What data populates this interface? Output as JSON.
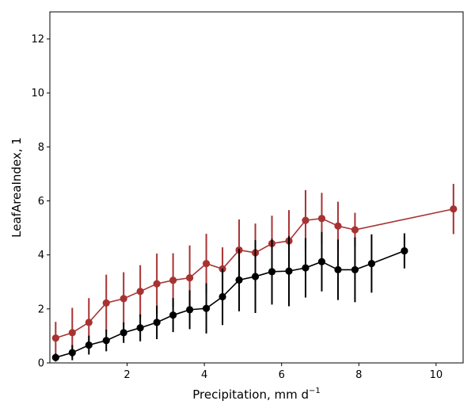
{
  "chart_data": {
    "type": "line",
    "title": "",
    "xlabel": "Precipitation,  mm d",
    "xlabel_sup": "−1",
    "ylabel": "LeafAreaIndex,  1",
    "xlim": [
      0.0,
      10.7
    ],
    "ylim": [
      0,
      13
    ],
    "xticks": [
      2,
      4,
      6,
      8,
      10
    ],
    "yticks": [
      0,
      2,
      4,
      6,
      8,
      10,
      12
    ],
    "grid": false,
    "legend": "none",
    "series": [
      {
        "color": "#a83232",
        "points": [
          {
            "x": 0.15,
            "y": 0.92,
            "err": 0.6
          },
          {
            "x": 0.58,
            "y": 1.12,
            "err": 0.92
          },
          {
            "x": 1.01,
            "y": 1.5,
            "err": 0.9
          },
          {
            "x": 1.46,
            "y": 2.22,
            "err": 1.05
          },
          {
            "x": 1.91,
            "y": 2.38,
            "err": 0.98
          },
          {
            "x": 2.34,
            "y": 2.65,
            "err": 0.97
          },
          {
            "x": 2.77,
            "y": 2.93,
            "err": 1.12
          },
          {
            "x": 3.19,
            "y": 3.06,
            "err": 1.0
          },
          {
            "x": 3.62,
            "y": 3.15,
            "err": 1.2
          },
          {
            "x": 4.05,
            "y": 3.68,
            "err": 1.1
          },
          {
            "x": 4.47,
            "y": 3.48,
            "err": 0.8
          },
          {
            "x": 4.9,
            "y": 4.18,
            "err": 1.13
          },
          {
            "x": 5.32,
            "y": 4.08,
            "err": 1.08
          },
          {
            "x": 5.75,
            "y": 4.42,
            "err": 1.03
          },
          {
            "x": 6.19,
            "y": 4.52,
            "err": 1.14
          },
          {
            "x": 6.62,
            "y": 5.28,
            "err": 1.12
          },
          {
            "x": 7.04,
            "y": 5.35,
            "err": 0.95
          },
          {
            "x": 7.46,
            "y": 5.07,
            "err": 0.9
          },
          {
            "x": 7.9,
            "y": 4.93,
            "err": 0.63
          },
          {
            "x": 10.45,
            "y": 5.7,
            "err": 0.93
          }
        ]
      },
      {
        "color": "#000000",
        "points": [
          {
            "x": 0.15,
            "y": 0.2,
            "err": 0.15
          },
          {
            "x": 0.58,
            "y": 0.38,
            "err": 0.28
          },
          {
            "x": 1.01,
            "y": 0.66,
            "err": 0.35
          },
          {
            "x": 1.46,
            "y": 0.83,
            "err": 0.4
          },
          {
            "x": 1.91,
            "y": 1.12,
            "err": 0.38
          },
          {
            "x": 2.34,
            "y": 1.3,
            "err": 0.5
          },
          {
            "x": 2.77,
            "y": 1.5,
            "err": 0.62
          },
          {
            "x": 3.19,
            "y": 1.77,
            "err": 0.63
          },
          {
            "x": 3.62,
            "y": 1.97,
            "err": 0.72
          },
          {
            "x": 4.05,
            "y": 2.02,
            "err": 0.93
          },
          {
            "x": 4.47,
            "y": 2.45,
            "err": 1.05
          },
          {
            "x": 4.9,
            "y": 3.07,
            "err": 1.16
          },
          {
            "x": 5.32,
            "y": 3.2,
            "err": 1.35
          },
          {
            "x": 5.75,
            "y": 3.38,
            "err": 1.22
          },
          {
            "x": 6.19,
            "y": 3.4,
            "err": 1.3
          },
          {
            "x": 6.62,
            "y": 3.52,
            "err": 1.1
          },
          {
            "x": 7.04,
            "y": 3.75,
            "err": 1.1
          },
          {
            "x": 7.46,
            "y": 3.45,
            "err": 1.12
          },
          {
            "x": 7.9,
            "y": 3.45,
            "err": 1.2
          },
          {
            "x": 8.33,
            "y": 3.68,
            "err": 1.08
          },
          {
            "x": 9.18,
            "y": 4.15,
            "err": 0.65
          }
        ]
      }
    ]
  }
}
